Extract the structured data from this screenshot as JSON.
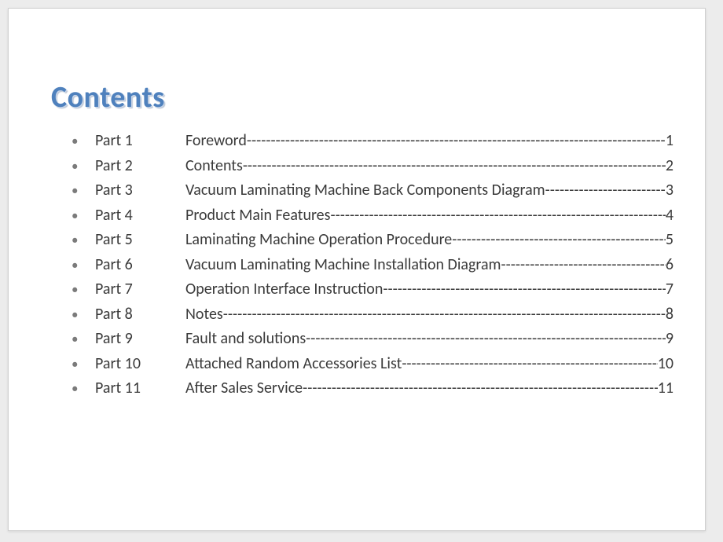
{
  "title": "Contents",
  "title_color": "#4f81bd",
  "font_family": "Calibri, 'Segoe UI', Arial, sans-serif",
  "entry_fontsize": 20,
  "title_fontsize": 38,
  "leader_char": "-",
  "items": [
    {
      "part": "Part 1",
      "label": "Foreword",
      "page": "1"
    },
    {
      "part": "Part 2",
      "label": "Contents",
      "page": "2"
    },
    {
      "part": "Part 3",
      "label": "Vacuum Laminating Machine Back Components Diagram",
      "page": "3"
    },
    {
      "part": "Part 4",
      "label": "Product Main Features",
      "page": "4"
    },
    {
      "part": "Part 5",
      "label": "Laminating Machine Operation Procedure",
      "page": "5"
    },
    {
      "part": "Part 6",
      "label": "Vacuum Laminating Machine Installation Diagram",
      "page": "6"
    },
    {
      "part": "Part 7",
      "label": "Operation Interface Instruction",
      "page": "7"
    },
    {
      "part": "Part 8",
      "label": "Notes",
      "page": "8"
    },
    {
      "part": "Part 9",
      "label": "Fault and solutions",
      "page": "9"
    },
    {
      "part": "Part 10",
      "label": "Attached Random Accessories List",
      "page": "10"
    },
    {
      "part": "Part 11",
      "label": "After Sales Service",
      "page": "11"
    }
  ]
}
